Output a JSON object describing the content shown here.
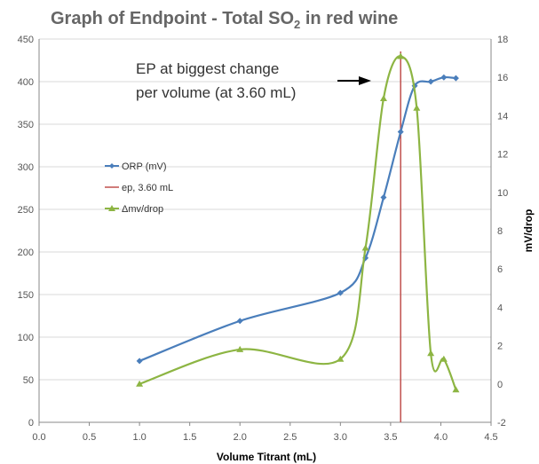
{
  "chart_data": {
    "type": "line",
    "title": "Graph of Endpoint - Total SO",
    "title_sub": "2",
    "title_end": " in red wine",
    "xlabel": "Volume Titrant (mL)",
    "ylabel": "",
    "y2label": "mV/drop",
    "xlim": [
      0,
      4.5
    ],
    "ylim": [
      0,
      450
    ],
    "y2lim": [
      -2,
      18
    ],
    "x_ticks": [
      "0.0",
      "0.5",
      "1.0",
      "1.5",
      "2.0",
      "2.5",
      "3.0",
      "3.5",
      "4.0",
      "4.5"
    ],
    "y_ticks": [
      "0",
      "50",
      "100",
      "150",
      "200",
      "250",
      "300",
      "350",
      "400",
      "450"
    ],
    "y2_ticks": [
      "-2",
      "0",
      "2",
      "4",
      "6",
      "8",
      "10",
      "12",
      "14",
      "16",
      "18"
    ],
    "grid": "horizontal",
    "legend_position": "left-middle",
    "series": [
      {
        "name": "ORP (mV)",
        "axis": "left",
        "color": "#4a7ebb",
        "marker": "diamond",
        "x": [
          1.0,
          2.0,
          3.0,
          3.25,
          3.43,
          3.6,
          3.74,
          3.9,
          4.03,
          4.15
        ],
        "y": [
          72,
          119,
          152,
          193,
          264,
          341,
          395,
          400,
          405,
          404
        ]
      },
      {
        "name": "Δmv/drop",
        "axis": "right",
        "color": "#8db543",
        "marker": "triangle",
        "x": [
          1.0,
          2.0,
          3.0,
          3.25,
          3.43,
          3.6,
          3.76,
          3.9,
          4.03,
          4.15
        ],
        "y": [
          0.0,
          1.8,
          1.3,
          7.1,
          14.9,
          17.1,
          14.4,
          1.6,
          1.3,
          -0.3
        ]
      }
    ],
    "endpoint": {
      "name": "ep, 3.60 mL",
      "x": 3.6,
      "color": "#c0504d"
    },
    "annotation": {
      "line1": "EP at biggest change",
      "line2": "per volume (at 3.60 mL)"
    }
  }
}
